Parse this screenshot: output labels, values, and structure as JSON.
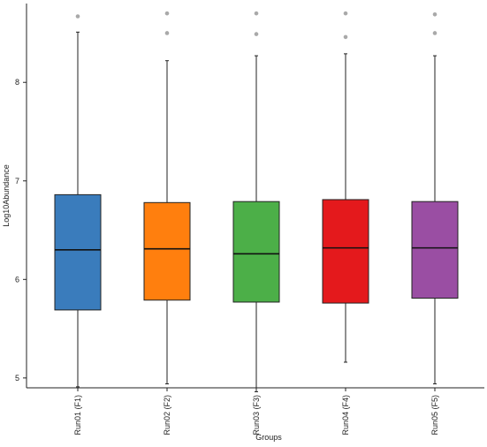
{
  "chart_data": {
    "type": "box",
    "title": "",
    "xlabel": "Groups",
    "ylabel": "Log10Abundance",
    "ylim": [
      4.9,
      8.8
    ],
    "yticks": [
      5,
      6,
      7,
      8
    ],
    "grid": false,
    "legend": "none",
    "categories": [
      "Run01 (F1)",
      "Run02 (F2)",
      "Run03 (F3)",
      "Run04 (F4)",
      "Run05 (F5)"
    ],
    "series": [
      {
        "category": "Run01 (F1)",
        "color": "#3a7cbc",
        "whisker_low": 4.91,
        "q1": 5.69,
        "median": 6.3,
        "q3": 6.86,
        "whisker_high": 8.51,
        "outliers": [
          8.67
        ]
      },
      {
        "category": "Run02 (F2)",
        "color": "#ff7f0e",
        "whisker_low": 4.94,
        "q1": 5.79,
        "median": 6.31,
        "q3": 6.78,
        "whisker_high": 8.22,
        "outliers": [
          8.5,
          8.7
        ]
      },
      {
        "category": "Run03 (F3)",
        "color": "#4caf48",
        "whisker_low": 4.86,
        "q1": 5.77,
        "median": 6.26,
        "q3": 6.79,
        "whisker_high": 8.27,
        "outliers": [
          8.49,
          8.7
        ]
      },
      {
        "category": "Run04 (F4)",
        "color": "#e4191c",
        "whisker_low": 5.16,
        "q1": 5.76,
        "median": 6.32,
        "q3": 6.81,
        "whisker_high": 8.29,
        "outliers": [
          8.46,
          8.7
        ]
      },
      {
        "category": "Run05 (F5)",
        "color": "#9a4ea3",
        "whisker_low": 4.94,
        "q1": 5.81,
        "median": 6.32,
        "q3": 6.79,
        "whisker_high": 8.27,
        "outliers": [
          8.5,
          8.69
        ]
      }
    ]
  }
}
